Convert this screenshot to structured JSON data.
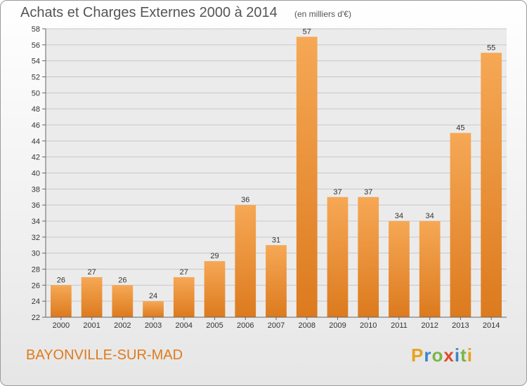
{
  "title": "Achats et Charges Externes 2000 à 2014",
  "subtitle": "(en milliers d'€)",
  "town": "BAYONVILLE-SUR-MAD",
  "logo": {
    "letters": [
      "P",
      "r",
      "o",
      "x",
      "i",
      "t",
      "i"
    ],
    "colors": [
      "#e8a21e",
      "#3a86c8",
      "#7ab648",
      "#e04b2a",
      "#3a86c8",
      "#7ab648",
      "#e8a21e"
    ]
  },
  "colors": {
    "bar_light": "#f6a855",
    "bar_dark": "#dc7a1e",
    "accent": "#e07a1c"
  },
  "chart_data": {
    "type": "bar",
    "categories": [
      "2000",
      "2001",
      "2002",
      "2003",
      "2004",
      "2005",
      "2006",
      "2007",
      "2008",
      "2009",
      "2010",
      "2011",
      "2012",
      "2013",
      "2014"
    ],
    "values": [
      26,
      27,
      26,
      24,
      27,
      29,
      36,
      31,
      57,
      37,
      37,
      34,
      34,
      45,
      55
    ],
    "ylim": [
      22,
      58
    ],
    "yticks": [
      22,
      24,
      26,
      28,
      30,
      32,
      34,
      36,
      38,
      40,
      42,
      44,
      46,
      48,
      50,
      52,
      54,
      56,
      58
    ],
    "grid": true,
    "data_labels": true
  }
}
